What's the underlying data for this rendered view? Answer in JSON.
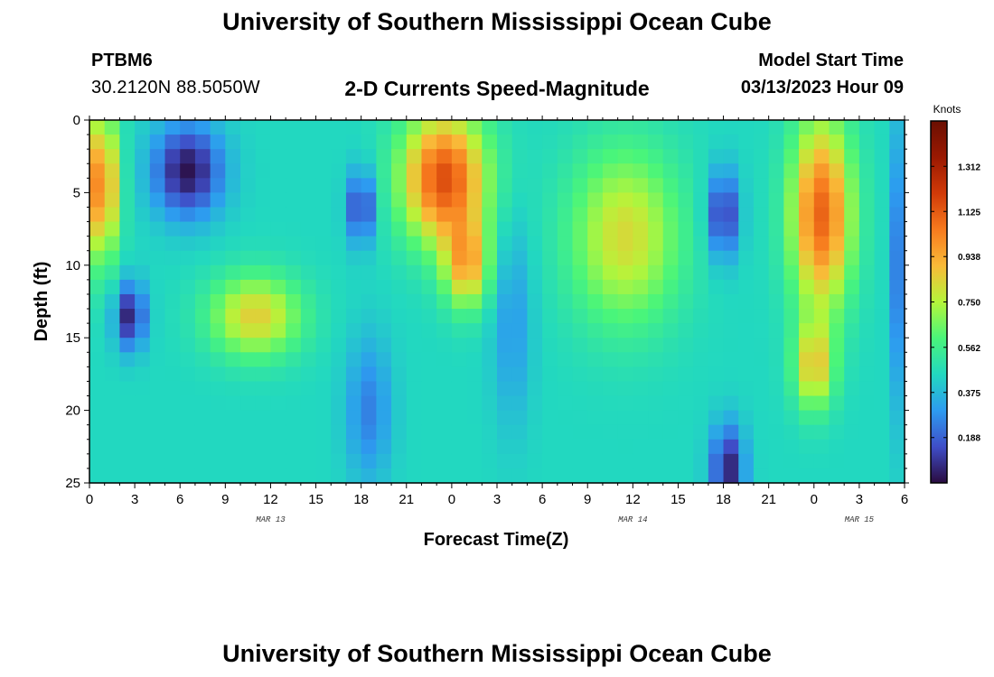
{
  "header": {
    "title_top": "University of Southern Mississippi Ocean Cube",
    "title_bottom": "University of Southern Mississippi Ocean Cube",
    "station_id": "PTBM6",
    "station_coords": "30.2120N  88.5050W",
    "subtitle": "2-D Currents Speed-Magnitude",
    "start_label": "Model Start Time",
    "start_value": "03/13/2023 Hour 09"
  },
  "chart_data": {
    "type": "heatmap",
    "title": "2-D Currents Speed-Magnitude",
    "xlabel": "Forecast Time(Z)",
    "ylabel": "Depth (ft)",
    "x_range_hours": [
      0,
      54
    ],
    "y_range_ft": [
      0,
      25
    ],
    "x_ticks": [
      {
        "h": 0,
        "label": "0"
      },
      {
        "h": 3,
        "label": "3"
      },
      {
        "h": 6,
        "label": "6"
      },
      {
        "h": 9,
        "label": "9"
      },
      {
        "h": 12,
        "label": "12"
      },
      {
        "h": 15,
        "label": "15"
      },
      {
        "h": 18,
        "label": "18"
      },
      {
        "h": 21,
        "label": "21"
      },
      {
        "h": 24,
        "label": "0"
      },
      {
        "h": 27,
        "label": "3"
      },
      {
        "h": 30,
        "label": "6"
      },
      {
        "h": 33,
        "label": "9"
      },
      {
        "h": 36,
        "label": "12"
      },
      {
        "h": 39,
        "label": "15"
      },
      {
        "h": 42,
        "label": "18"
      },
      {
        "h": 45,
        "label": "21"
      },
      {
        "h": 48,
        "label": "0"
      },
      {
        "h": 51,
        "label": "3"
      },
      {
        "h": 54,
        "label": "6"
      }
    ],
    "y_ticks": [
      {
        "ft": 0,
        "label": "0"
      },
      {
        "ft": 5,
        "label": "5"
      },
      {
        "ft": 10,
        "label": "10"
      },
      {
        "ft": 15,
        "label": "15"
      },
      {
        "ft": 20,
        "label": "20"
      },
      {
        "ft": 25,
        "label": "25"
      }
    ],
    "date_labels": [
      {
        "h": 12,
        "label": "MAR 13"
      },
      {
        "h": 36,
        "label": "MAR 14"
      },
      {
        "h": 51,
        "label": "MAR 15"
      }
    ],
    "colorbar": {
      "unit": "Knots",
      "min": 0.0,
      "max": 1.5,
      "ticks": [
        0.188,
        0.375,
        0.562,
        0.75,
        0.938,
        1.125,
        1.312
      ],
      "tick_labels": [
        "0.188",
        "0.375",
        "0.562",
        "0.750",
        "0.938",
        "1.125",
        "1.312"
      ],
      "colors": [
        "#2a0b3f",
        "#3f4ec8",
        "#2d9bf0",
        "#22d8c0",
        "#4af57a",
        "#b5f53a",
        "#f9ba38",
        "#f77a1e",
        "#d13a08",
        "#9a1902",
        "#6b0f02"
      ]
    },
    "features": [
      {
        "kind": "high",
        "h": 0.8,
        "ft": 4.5,
        "value": 1.05,
        "sh": 1.1,
        "sd": 5.0
      },
      {
        "kind": "high",
        "h": 11.0,
        "ft": 13.5,
        "value": 0.85,
        "sh": 3.0,
        "sd": 2.8
      },
      {
        "kind": "high",
        "h": 23.5,
        "ft": 4.0,
        "value": 1.15,
        "sh": 2.8,
        "sd": 4.5
      },
      {
        "kind": "high",
        "h": 25.0,
        "ft": 10.0,
        "value": 0.9,
        "sh": 1.5,
        "sd": 3.0
      },
      {
        "kind": "high",
        "h": 35.5,
        "ft": 8.0,
        "value": 0.82,
        "sh": 3.6,
        "sd": 6.0
      },
      {
        "kind": "high",
        "h": 48.5,
        "ft": 6.5,
        "value": 1.1,
        "sh": 2.0,
        "sd": 6.5
      },
      {
        "kind": "high",
        "h": 48.0,
        "ft": 17.0,
        "value": 0.85,
        "sh": 1.3,
        "sd": 3.0
      },
      {
        "kind": "low",
        "h": 6.5,
        "ft": 3.5,
        "value": 0.02,
        "sh": 2.3,
        "sd": 3.2
      },
      {
        "kind": "low",
        "h": 2.7,
        "ft": 13.5,
        "value": 0.05,
        "sh": 1.0,
        "sd": 2.3
      },
      {
        "kind": "low",
        "h": 18.0,
        "ft": 6.0,
        "value": 0.1,
        "sh": 0.9,
        "sd": 2.5
      },
      {
        "kind": "low",
        "h": 18.5,
        "ft": 20.0,
        "value": 0.25,
        "sh": 1.5,
        "sd": 5.0
      },
      {
        "kind": "low",
        "h": 28.0,
        "ft": 14.0,
        "value": 0.3,
        "sh": 1.3,
        "sd": 7.0
      },
      {
        "kind": "low",
        "h": 42.0,
        "ft": 6.5,
        "value": 0.08,
        "sh": 1.0,
        "sd": 3.0
      },
      {
        "kind": "low",
        "h": 42.3,
        "ft": 24.0,
        "value": 0.05,
        "sh": 1.1,
        "sd": 3.0
      },
      {
        "kind": "low",
        "h": 53.8,
        "ft": 10.0,
        "value": 0.2,
        "sh": 0.6,
        "sd": 10.0
      }
    ]
  }
}
